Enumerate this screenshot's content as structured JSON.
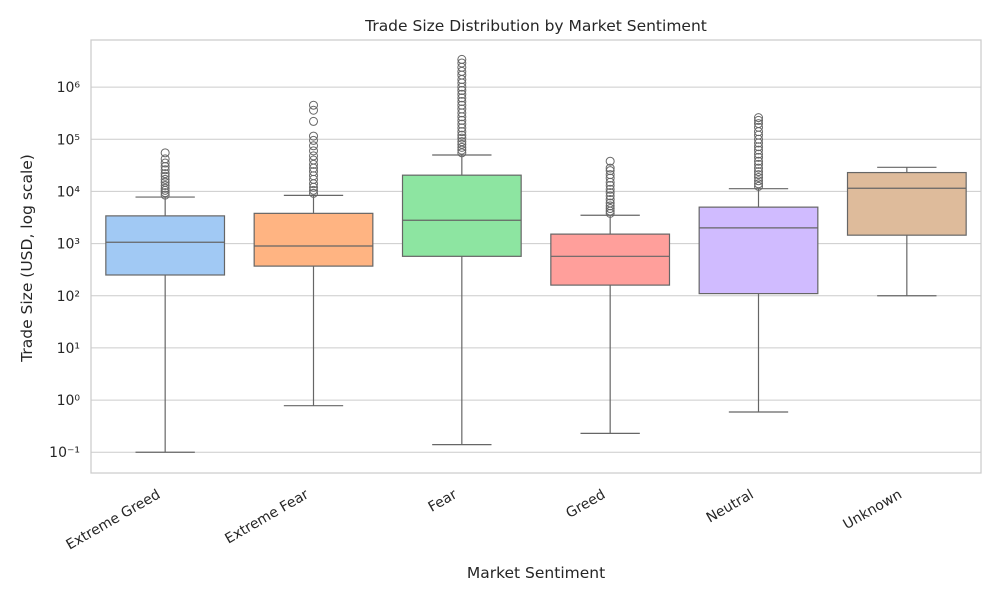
{
  "chart_data": {
    "type": "box",
    "title": "Trade Size Distribution by Market Sentiment",
    "xlabel": "Market Sentiment",
    "ylabel": "Trade Size (USD, log scale)",
    "yscale": "log",
    "ylim": [
      0.04,
      8000000
    ],
    "yticks": [
      0.1,
      1,
      10,
      100,
      1000,
      10000,
      100000,
      1000000
    ],
    "ytick_labels": [
      "10⁻¹",
      "10⁰",
      "10¹",
      "10²",
      "10³",
      "10⁴",
      "10⁵",
      "10⁶"
    ],
    "grid": true,
    "categories": [
      "Extreme Greed",
      "Extreme Fear",
      "Fear",
      "Greed",
      "Neutral",
      "Unknown"
    ],
    "colors": [
      "#a1c9f4",
      "#ffb482",
      "#8de5a1",
      "#ff9f9b",
      "#d0bbff",
      "#debb9b"
    ],
    "boxes": [
      {
        "whisker_low": 0.1,
        "q1": 250,
        "median": 1060,
        "q3": 3400,
        "whisker_high": 7800,
        "outliers": [
          8500,
          9500,
          10500,
          11500,
          13000,
          15000,
          17000,
          19500,
          22000,
          26000,
          30000,
          35000,
          42000,
          55000
        ]
      },
      {
        "whisker_low": 0.78,
        "q1": 370,
        "median": 900,
        "q3": 3800,
        "whisker_high": 8400,
        "outliers": [
          9200,
          10500,
          12000,
          14000,
          17000,
          20000,
          24000,
          28000,
          33000,
          40000,
          48000,
          60000,
          75000,
          95000,
          115000,
          220000,
          360000,
          450000
        ]
      },
      {
        "whisker_low": 0.14,
        "q1": 570,
        "median": 2800,
        "q3": 20500,
        "whisker_high": 50000,
        "outliers": [
          55000,
          62000,
          70000,
          80000,
          90000,
          105000,
          120000,
          140000,
          165000,
          195000,
          230000,
          270000,
          320000,
          380000,
          450000,
          530000,
          620000,
          730000,
          860000,
          1000000,
          1200000,
          1400000,
          1700000,
          2000000,
          2400000,
          2900000,
          3400000
        ]
      },
      {
        "whisker_low": 0.23,
        "q1": 160,
        "median": 570,
        "q3": 1520,
        "whisker_high": 3500,
        "outliers": [
          3800,
          4200,
          4700,
          5300,
          6000,
          7000,
          8200,
          9500,
          11000,
          13000,
          15000,
          18000,
          21000,
          25000,
          28000,
          38000
        ]
      },
      {
        "whisker_low": 0.59,
        "q1": 110,
        "median": 2000,
        "q3": 5000,
        "whisker_high": 11300,
        "outliers": [
          12500,
          14000,
          16000,
          18500,
          21000,
          24000,
          28000,
          33000,
          38000,
          45000,
          52000,
          62000,
          72000,
          85000,
          100000,
          120000,
          140000,
          170000,
          200000,
          230000,
          260000
        ]
      },
      {
        "whisker_low": 100,
        "q1": 1450,
        "median": 11500,
        "q3": 23000,
        "whisker_high": 29000,
        "outliers": []
      }
    ]
  }
}
